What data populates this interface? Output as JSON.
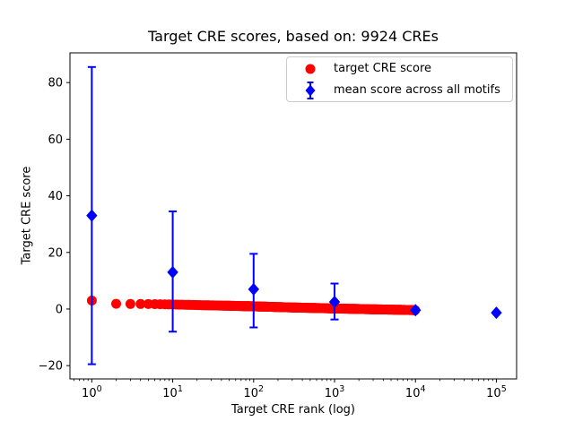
{
  "title": "Target CRE scores, based on: 9924 CREs",
  "xlabel": "Target CRE rank (log)",
  "ylabel": "Target CRE score",
  "legend": {
    "items": [
      {
        "label": "target CRE score",
        "marker": "red-circle",
        "color": "#ff0000"
      },
      {
        "label": "mean score across all motifs",
        "marker": "blue-diamond-errorbar",
        "color": "#0000ff"
      }
    ]
  },
  "colors": {
    "target_series": "#ff0000",
    "mean_series": "#0000ff",
    "axis": "#000000",
    "legend_border": "#cccccc",
    "background": "#ffffff"
  },
  "chart_data": {
    "type": "scatter",
    "x_scale": "log",
    "xlabel": "Target CRE rank (log)",
    "ylabel": "Target CRE score",
    "title": "Target CRE scores, based on: 9924 CREs",
    "xlim_log10": [
      -0.27,
      5.25
    ],
    "ylim": [
      -24.7,
      90.5
    ],
    "x_tick_exponents": [
      0,
      1,
      2,
      3,
      4,
      5
    ],
    "y_ticks": [
      "−20",
      "0",
      "20",
      "40",
      "60",
      "80"
    ],
    "y_tick_values": [
      -20,
      0,
      20,
      40,
      60,
      80
    ],
    "grid": false,
    "legend_position": "upper right",
    "series": [
      {
        "name": "target CRE score",
        "type": "scatter",
        "color": "#ff0000",
        "n_points": 9924,
        "x_range": [
          1,
          9924
        ],
        "sampled_points": [
          [
            1,
            3.0
          ],
          [
            2,
            1.85
          ],
          [
            3,
            1.8
          ],
          [
            4,
            1.78
          ],
          [
            6,
            1.72
          ],
          [
            10,
            1.6
          ],
          [
            20,
            1.4
          ],
          [
            50,
            1.15
          ],
          [
            100,
            0.95
          ],
          [
            300,
            0.55
          ],
          [
            1000,
            0.2
          ],
          [
            3000,
            -0.1
          ],
          [
            6000,
            -0.25
          ],
          [
            9924,
            -0.4
          ]
        ]
      },
      {
        "name": "mean score across all motifs",
        "type": "errorbar",
        "color": "#0000ff",
        "points": [
          {
            "x": 1,
            "y": 33.0,
            "lo": -19.5,
            "hi": 85.5
          },
          {
            "x": 10,
            "y": 13.0,
            "lo": -8.0,
            "hi": 34.5
          },
          {
            "x": 100,
            "y": 7.0,
            "lo": -6.5,
            "hi": 19.5
          },
          {
            "x": 1000,
            "y": 2.5,
            "lo": -3.7,
            "hi": 9.0
          },
          {
            "x": 10000,
            "y": -0.4,
            "lo": -0.4,
            "hi": -0.4
          },
          {
            "x": 100000,
            "y": -1.3,
            "lo": -1.3,
            "hi": -1.3
          }
        ]
      }
    ]
  }
}
